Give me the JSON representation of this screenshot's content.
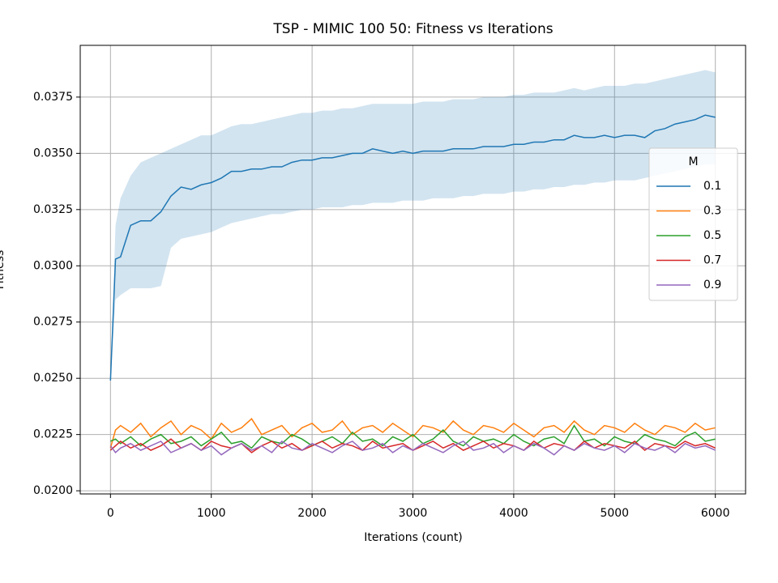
{
  "chart_data": {
    "type": "line",
    "title": "TSP - MIMIC 100 50: Fitness vs Iterations",
    "x_label": "Iterations (count)",
    "y_label": "Fitness",
    "legend_title": "M",
    "legend_position": "center right",
    "grid": true,
    "xlim": [
      -300,
      6300
    ],
    "xticks": [
      0,
      1000,
      2000,
      3000,
      4000,
      5000,
      6000
    ],
    "ylim": [
      0.01986,
      0.0398
    ],
    "yticks": [
      {
        "value": 0.02,
        "label": "0.0200"
      },
      0.0225,
      {
        "value": 0.025,
        "label": "0.0250"
      },
      0.0275,
      {
        "value": 0.03,
        "label": "0.0300"
      },
      0.0325,
      {
        "value": 0.035,
        "label": "0.0350"
      },
      0.0375
    ],
    "x": [
      0,
      50,
      100,
      200,
      300,
      400,
      500,
      600,
      700,
      800,
      900,
      1000,
      1100,
      1200,
      1300,
      1400,
      1500,
      1600,
      1700,
      1800,
      1900,
      2000,
      2100,
      2200,
      2300,
      2400,
      2500,
      2600,
      2700,
      2800,
      2900,
      3000,
      3100,
      3200,
      3300,
      3400,
      3500,
      3600,
      3700,
      3800,
      3900,
      4000,
      4100,
      4200,
      4300,
      4400,
      4500,
      4600,
      4700,
      4800,
      4900,
      5000,
      5100,
      5200,
      5300,
      5400,
      5500,
      5600,
      5700,
      5800,
      5900,
      6000
    ],
    "series": [
      {
        "name": "0.1",
        "color": "#1f77b4",
        "values": [
          0.0249,
          0.0303,
          0.0304,
          0.0318,
          0.032,
          0.032,
          0.0324,
          0.0331,
          0.0335,
          0.0334,
          0.0336,
          0.0337,
          0.0339,
          0.0342,
          0.0342,
          0.0343,
          0.0343,
          0.0344,
          0.0344,
          0.0346,
          0.0347,
          0.0347,
          0.0348,
          0.0348,
          0.0349,
          0.035,
          0.035,
          0.0352,
          0.0351,
          0.035,
          0.0351,
          0.035,
          0.0351,
          0.0351,
          0.0351,
          0.0352,
          0.0352,
          0.0352,
          0.0353,
          0.0353,
          0.0353,
          0.0354,
          0.0354,
          0.0355,
          0.0355,
          0.0356,
          0.0356,
          0.0358,
          0.0357,
          0.0357,
          0.0358,
          0.0357,
          0.0358,
          0.0358,
          0.0357,
          0.036,
          0.0361,
          0.0363,
          0.0364,
          0.0365,
          0.0367,
          0.0366
        ],
        "lower": [
          0.0249,
          0.0285,
          0.0287,
          0.029,
          0.029,
          0.029,
          0.0291,
          0.0308,
          0.0312,
          0.0313,
          0.0314,
          0.0315,
          0.0317,
          0.0319,
          0.032,
          0.0321,
          0.0322,
          0.0323,
          0.0323,
          0.0324,
          0.0325,
          0.0325,
          0.0326,
          0.0326,
          0.0326,
          0.0327,
          0.0327,
          0.0328,
          0.0328,
          0.0328,
          0.0329,
          0.0329,
          0.0329,
          0.033,
          0.033,
          0.033,
          0.0331,
          0.0331,
          0.0332,
          0.0332,
          0.0332,
          0.0333,
          0.0333,
          0.0334,
          0.0334,
          0.0335,
          0.0335,
          0.0336,
          0.0336,
          0.0337,
          0.0337,
          0.0338,
          0.0338,
          0.0338,
          0.0339,
          0.034,
          0.0341,
          0.0342,
          0.0343,
          0.0344,
          0.0345,
          0.0345
        ],
        "upper": [
          0.0249,
          0.0318,
          0.033,
          0.034,
          0.0346,
          0.0348,
          0.035,
          0.0352,
          0.0354,
          0.0356,
          0.0358,
          0.0358,
          0.036,
          0.0362,
          0.0363,
          0.0363,
          0.0364,
          0.0365,
          0.0366,
          0.0367,
          0.0368,
          0.0368,
          0.0369,
          0.0369,
          0.037,
          0.037,
          0.0371,
          0.0372,
          0.0372,
          0.0372,
          0.0372,
          0.0372,
          0.0373,
          0.0373,
          0.0373,
          0.0374,
          0.0374,
          0.0374,
          0.0375,
          0.0375,
          0.0375,
          0.0376,
          0.0376,
          0.0377,
          0.0377,
          0.0377,
          0.0378,
          0.0379,
          0.0378,
          0.0379,
          0.038,
          0.038,
          0.038,
          0.0381,
          0.0381,
          0.0382,
          0.0383,
          0.0384,
          0.0385,
          0.0386,
          0.0387,
          0.0386
        ]
      },
      {
        "name": "0.3",
        "color": "#ff7f0e",
        "values": [
          0.0219,
          0.0227,
          0.0229,
          0.0226,
          0.023,
          0.0224,
          0.0228,
          0.0231,
          0.0225,
          0.0229,
          0.0227,
          0.0223,
          0.023,
          0.0226,
          0.0228,
          0.0232,
          0.0225,
          0.0227,
          0.0229,
          0.0224,
          0.0228,
          0.023,
          0.0226,
          0.0227,
          0.0231,
          0.0225,
          0.0228,
          0.0229,
          0.0226,
          0.023,
          0.0227,
          0.0224,
          0.0229,
          0.0228,
          0.0226,
          0.0231,
          0.0227,
          0.0225,
          0.0229,
          0.0228,
          0.0226,
          0.023,
          0.0227,
          0.0224,
          0.0228,
          0.0229,
          0.0226,
          0.0231,
          0.0227,
          0.0225,
          0.0229,
          0.0228,
          0.0226,
          0.023,
          0.0227,
          0.0225,
          0.0229,
          0.0228,
          0.0226,
          0.023,
          0.0227,
          0.0228
        ]
      },
      {
        "name": "0.5",
        "color": "#2ca02c",
        "values": [
          0.0222,
          0.0223,
          0.0221,
          0.0224,
          0.022,
          0.0223,
          0.0225,
          0.0221,
          0.0222,
          0.0224,
          0.022,
          0.0223,
          0.0226,
          0.0221,
          0.0222,
          0.0219,
          0.0224,
          0.0222,
          0.0221,
          0.0225,
          0.0223,
          0.022,
          0.0222,
          0.0224,
          0.0221,
          0.0226,
          0.0222,
          0.0223,
          0.022,
          0.0224,
          0.0222,
          0.0225,
          0.0221,
          0.0223,
          0.0227,
          0.0222,
          0.022,
          0.0224,
          0.0222,
          0.0223,
          0.0221,
          0.0225,
          0.0222,
          0.022,
          0.0223,
          0.0224,
          0.0221,
          0.0229,
          0.0222,
          0.0223,
          0.022,
          0.0224,
          0.0222,
          0.0221,
          0.0225,
          0.0223,
          0.0222,
          0.022,
          0.0224,
          0.0226,
          0.0222,
          0.0223
        ]
      },
      {
        "name": "0.7",
        "color": "#d62728",
        "values": [
          0.0218,
          0.022,
          0.0222,
          0.0219,
          0.0221,
          0.0218,
          0.022,
          0.0223,
          0.0219,
          0.0221,
          0.0218,
          0.0222,
          0.022,
          0.0219,
          0.0221,
          0.0217,
          0.022,
          0.0222,
          0.0219,
          0.0221,
          0.0218,
          0.022,
          0.0222,
          0.0219,
          0.0221,
          0.022,
          0.0218,
          0.0222,
          0.0219,
          0.022,
          0.0221,
          0.0218,
          0.022,
          0.0222,
          0.0219,
          0.0221,
          0.0218,
          0.022,
          0.0222,
          0.0219,
          0.0221,
          0.022,
          0.0218,
          0.0222,
          0.0219,
          0.0221,
          0.022,
          0.0218,
          0.0222,
          0.0219,
          0.0221,
          0.022,
          0.0219,
          0.0222,
          0.0218,
          0.0221,
          0.022,
          0.0219,
          0.0222,
          0.022,
          0.0221,
          0.0219
        ]
      },
      {
        "name": "0.9",
        "color": "#9467bd",
        "values": [
          0.022,
          0.0217,
          0.0219,
          0.0221,
          0.0218,
          0.022,
          0.0222,
          0.0217,
          0.0219,
          0.0221,
          0.0218,
          0.022,
          0.0216,
          0.0219,
          0.0221,
          0.0218,
          0.022,
          0.0217,
          0.0222,
          0.0219,
          0.0218,
          0.0221,
          0.0219,
          0.0217,
          0.022,
          0.0222,
          0.0218,
          0.0219,
          0.0221,
          0.0217,
          0.022,
          0.0218,
          0.0221,
          0.0219,
          0.0217,
          0.022,
          0.0222,
          0.0218,
          0.0219,
          0.0221,
          0.0217,
          0.022,
          0.0218,
          0.0221,
          0.0219,
          0.0216,
          0.022,
          0.0218,
          0.0221,
          0.0219,
          0.0218,
          0.022,
          0.0217,
          0.0221,
          0.0219,
          0.0218,
          0.022,
          0.0217,
          0.0221,
          0.0219,
          0.022,
          0.0218
        ]
      }
    ]
  }
}
